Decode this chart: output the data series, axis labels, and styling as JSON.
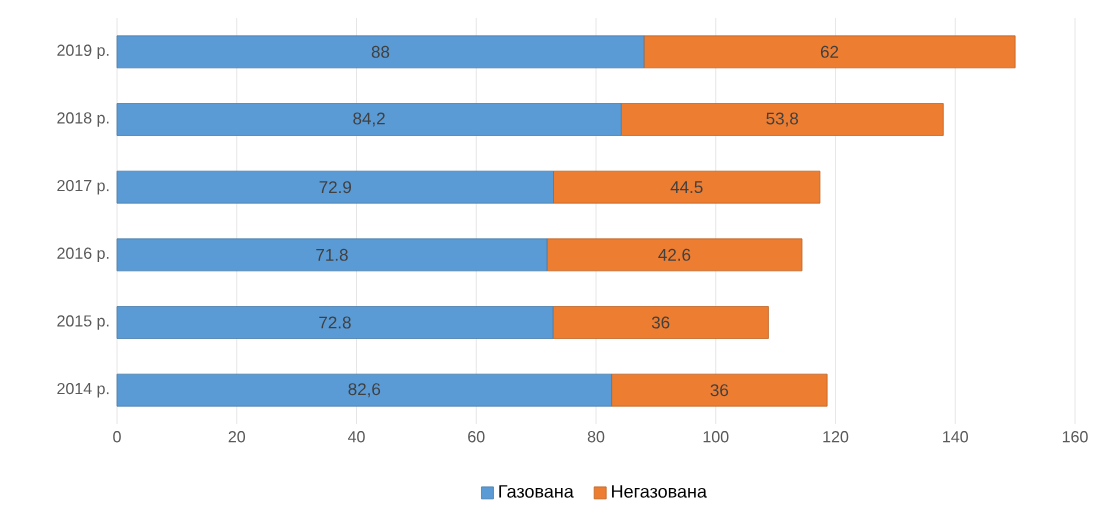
{
  "chart_data": {
    "type": "bar",
    "orientation": "horizontal",
    "stacked": true,
    "categories": [
      "2019 р.",
      "2018 р.",
      "2017 р.",
      "2016 р.",
      "2015 р.",
      "2014 р."
    ],
    "series": [
      {
        "name": "Газована",
        "color": "#5b9bd5",
        "values": [
          88,
          84.2,
          72.9,
          71.8,
          72.8,
          82.6
        ],
        "value_labels": [
          "88",
          "84,2",
          "72.9",
          "71.8",
          "72.8",
          "82,6"
        ]
      },
      {
        "name": "Негазована",
        "color": "#ed7d31",
        "values": [
          62,
          53.8,
          44.5,
          42.6,
          36,
          36
        ],
        "value_labels": [
          "62",
          "53,8",
          "44.5",
          "42.6",
          "36",
          "36"
        ]
      }
    ],
    "xlim": [
      0,
      160
    ],
    "xticks": [
      0,
      20,
      40,
      60,
      80,
      100,
      120,
      140,
      160
    ],
    "grid": "x",
    "legend": "bottom"
  }
}
